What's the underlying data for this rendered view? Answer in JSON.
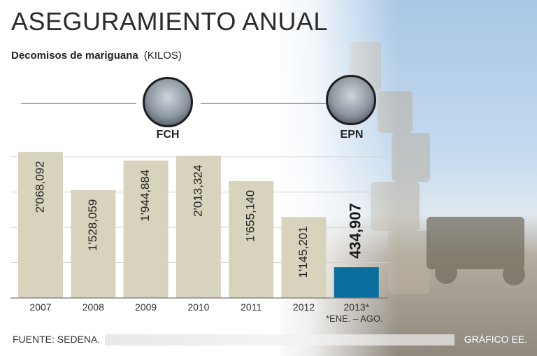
{
  "header": {
    "title": "ASEGURAMIENTO ANUAL",
    "subtitle": "Decomisos de mariguana",
    "unit": "(KILOS)"
  },
  "people": [
    {
      "label": "FCH"
    },
    {
      "label": "EPN"
    }
  ],
  "chart_data": {
    "type": "bar",
    "title": "ASEGURAMIENTO ANUAL",
    "subtitle": "Decomisos de mariguana",
    "ylabel": "(KILOS)",
    "xlabel": "",
    "categories": [
      "2007",
      "2008",
      "2009",
      "2010",
      "2011",
      "2012",
      "2013*"
    ],
    "values": [
      2068092,
      1528059,
      1944884,
      2013324,
      1655140,
      1145201,
      434907
    ],
    "value_labels": [
      "2'068,092",
      "1'528,059",
      "1'944,884",
      "2'013,324",
      "1'655,140",
      "1'145,201",
      "434,907"
    ],
    "ylim": [
      0,
      2100000
    ],
    "grid": true,
    "colors": {
      "bar": "#d7d3bd",
      "highlight": "#0a6f9c"
    },
    "highlight_index": 6
  },
  "footnote": "*ENE. – AGO.",
  "source": "FUENTE: SEDENA.",
  "credit": "GRÁFICO EE."
}
